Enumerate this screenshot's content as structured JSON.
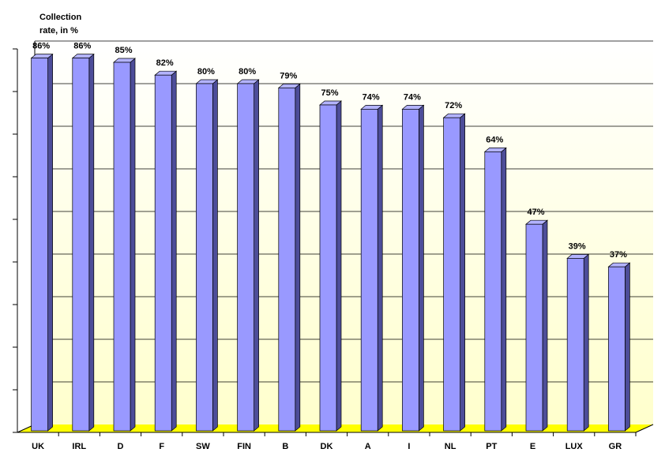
{
  "chart_data": {
    "type": "bar",
    "ylabel_lines": [
      "Collection",
      "rate, in %"
    ],
    "categories": [
      "UK",
      "IRL",
      "D",
      "F",
      "SW",
      "FIN",
      "B",
      "DK",
      "A",
      "I",
      "NL",
      "PT",
      "E",
      "LUX",
      "GR"
    ],
    "values": [
      86,
      86,
      85,
      82,
      80,
      80,
      79,
      75,
      74,
      74,
      72,
      64,
      47,
      39,
      37
    ],
    "data_labels": [
      "86%",
      "86%",
      "85%",
      "82%",
      "80%",
      "80%",
      "79%",
      "75%",
      "74%",
      "74%",
      "72%",
      "64%",
      "47%",
      "39%",
      "37%"
    ],
    "ylim": [
      0,
      90
    ],
    "grid": true,
    "legend": "none",
    "colors": {
      "bar_front": "#9999ff",
      "bar_side": "#4d4d99",
      "bar_top": "#b3b3ff",
      "floor": "#ffff00",
      "wall_top": "#ffffff",
      "wall_bottom": "#ffffcc",
      "gridline": "#000000"
    }
  }
}
